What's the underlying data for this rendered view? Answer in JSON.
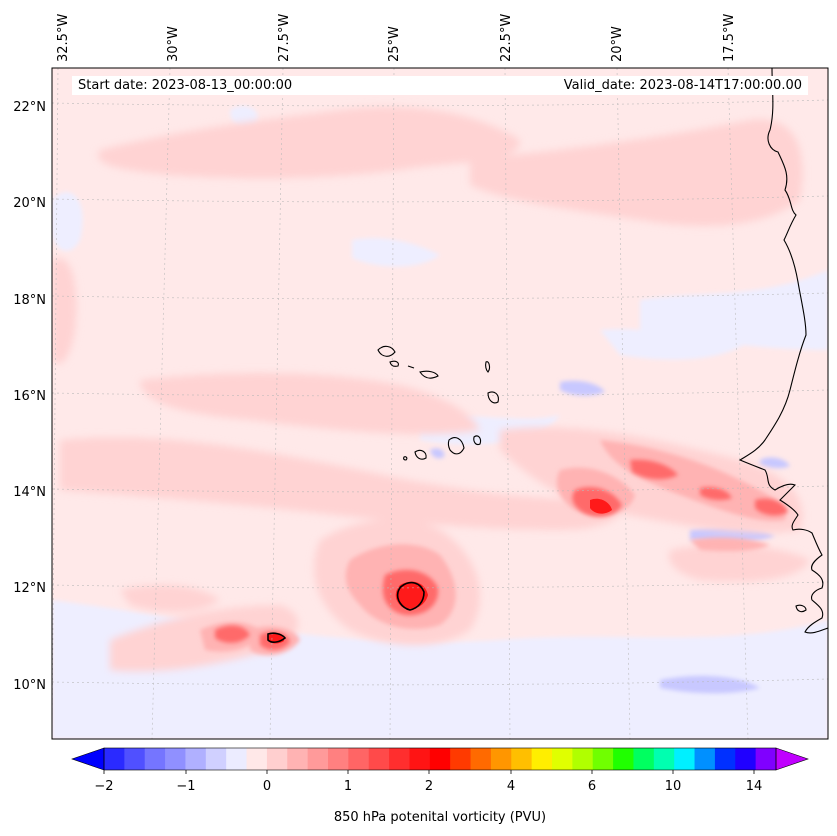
{
  "map": {
    "lon_labels": [
      "32.5°W",
      "30°W",
      "27.5°W",
      "25°W",
      "22.5°W",
      "20°W",
      "17.5°W"
    ],
    "lat_labels": [
      "22°N",
      "20°N",
      "18°N",
      "16°N",
      "14°N",
      "12°N",
      "10°N"
    ],
    "start_date_text": "Start date: 2023-08-13_00:00:00",
    "valid_date_text": "Valid_date: 2023-08-14T17:00:00.00",
    "field": "850 hPa potential vorticity",
    "features": [
      "Cape Verde islands",
      "West African coastline",
      "vorticity maxima near 12°N 24.5°W",
      "vorticity maxima near 11°N 27.5°W"
    ]
  },
  "colorbar": {
    "ticks": [
      "−2",
      "−1",
      "0",
      "1",
      "2",
      "4",
      "6",
      "10",
      "14"
    ],
    "label": "850 hPa potenital vorticity (PVU)",
    "colors": [
      "#0000ff",
      "#2a2aff",
      "#5050ff",
      "#7575ff",
      "#9090ff",
      "#b0b0ff",
      "#d0d0ff",
      "#ececff",
      "#ffe8e8",
      "#ffcfcf",
      "#ffb3b3",
      "#ff9a9a",
      "#ff8080",
      "#ff6565",
      "#ff4a4a",
      "#ff2e2e",
      "#ff1414",
      "#ff0000",
      "#ff3a00",
      "#ff6a00",
      "#ff9600",
      "#ffbf00",
      "#ffee00",
      "#e0ff00",
      "#b0ff00",
      "#70ff00",
      "#20ff00",
      "#00ff60",
      "#00ffb0",
      "#00f0ff",
      "#0090ff",
      "#0030ff",
      "#2000ff",
      "#8000ff",
      "#c000ff"
    ]
  }
}
